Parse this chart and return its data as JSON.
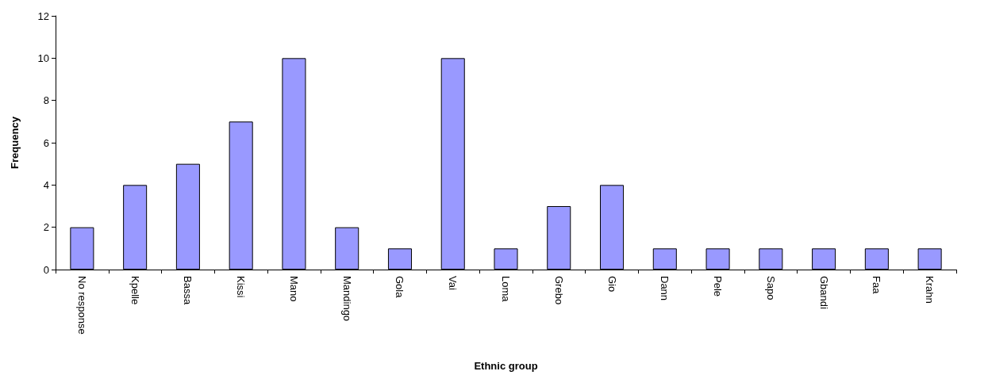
{
  "chart_data": {
    "type": "bar",
    "categories": [
      "No response",
      "Kpelle",
      "Bassa",
      "Kissi",
      "Mano",
      "Mandingo",
      "Gola",
      "Vai",
      "Loma",
      "Grebo",
      "Gio",
      "Dann",
      "Pele",
      "Sapo",
      "Gbandi",
      "Faa",
      "Krahn"
    ],
    "values": [
      2,
      4,
      5,
      7,
      10,
      2,
      1,
      10,
      1,
      3,
      4,
      1,
      1,
      1,
      1,
      1,
      1
    ],
    "color": "#9999ff",
    "xlabel": "Ethnic group",
    "ylabel": "Frequency",
    "ylim": [
      0,
      12
    ],
    "yticks": [
      0,
      2,
      4,
      6,
      8,
      10,
      12
    ],
    "grid": false
  }
}
